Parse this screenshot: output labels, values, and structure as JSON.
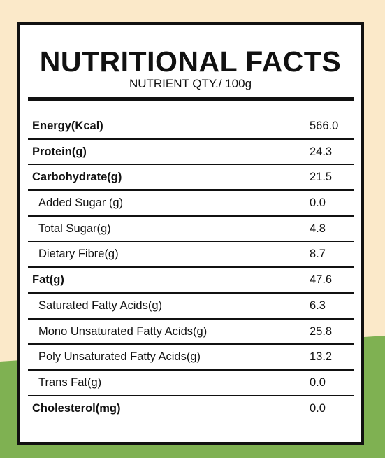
{
  "colors": {
    "background_cream": "#fbe9c9",
    "background_green": "#7fb152",
    "panel": "#ffffff",
    "ink": "#111111"
  },
  "header": {
    "title": "NUTRITIONAL FACTS",
    "subtitle": "NUTRIENT QTY./ 100g"
  },
  "rows": [
    {
      "label": "Energy(Kcal)",
      "value": "566.0",
      "level": "main"
    },
    {
      "label": "Protein(g)",
      "value": "24.3",
      "level": "main"
    },
    {
      "label": "Carbohydrate(g)",
      "value": "21.5",
      "level": "main"
    },
    {
      "label": "Added Sugar (g)",
      "value": "0.0",
      "level": "sub"
    },
    {
      "label": "Total Sugar(g)",
      "value": "4.8",
      "level": "sub"
    },
    {
      "label": "Dietary Fibre(g)",
      "value": "8.7",
      "level": "sub"
    },
    {
      "label": "Fat(g)",
      "value": "47.6",
      "level": "main"
    },
    {
      "label": "Saturated Fatty Acids(g)",
      "value": "6.3",
      "level": "sub"
    },
    {
      "label": "Mono Unsaturated Fatty Acids(g)",
      "value": "25.8",
      "level": "sub"
    },
    {
      "label": "Poly Unsaturated Fatty Acids(g)",
      "value": "13.2",
      "level": "sub"
    },
    {
      "label": "Trans Fat(g)",
      "value": "0.0",
      "level": "sub"
    },
    {
      "label": "Cholesterol(mg)",
      "value": "0.0",
      "level": "main"
    }
  ]
}
